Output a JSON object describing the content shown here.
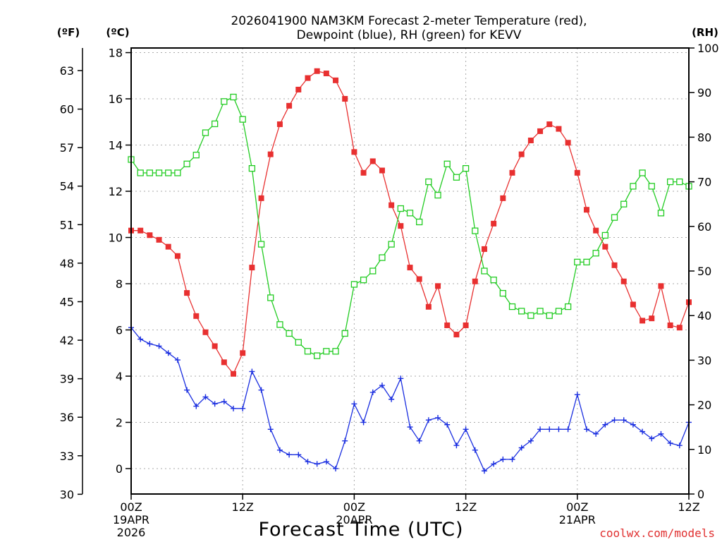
{
  "chart_data": {
    "type": "line",
    "title_line1": "2026041900 NAM3KM Forecast 2-meter Temperature (red),",
    "title_line2": "Dewpoint (blue), RH (green) for KEVV",
    "xlabel": "Forecast Time (UTC)",
    "watermark": "coolwx.com/models",
    "left_outer_unit": "(ºF)",
    "left_inner_unit": "(ºC)",
    "right_unit": "(RH)",
    "xlim": [
      0,
      60
    ],
    "ylim_c": [
      -1.1,
      18.2
    ],
    "ylim_rh": [
      0,
      100
    ],
    "f_ticks": [
      "30",
      "33",
      "36",
      "39",
      "42",
      "45",
      "48",
      "51",
      "54",
      "57",
      "60",
      "63"
    ],
    "c_ticks": [
      "0",
      "2",
      "4",
      "6",
      "8",
      "10",
      "12",
      "14",
      "16",
      "18"
    ],
    "rh_ticks": [
      "0",
      "10",
      "20",
      "30",
      "40",
      "50",
      "60",
      "70",
      "80",
      "90",
      "100"
    ],
    "x_ticks": [
      {
        "hour": 0,
        "label": "00Z",
        "date": "19APR",
        "year": "2026"
      },
      {
        "hour": 12,
        "label": "12Z",
        "date": "",
        "year": ""
      },
      {
        "hour": 24,
        "label": "00Z",
        "date": "20APR",
        "year": ""
      },
      {
        "hour": 36,
        "label": "12Z",
        "date": "",
        "year": ""
      },
      {
        "hour": 48,
        "label": "00Z",
        "date": "21APR",
        "year": ""
      },
      {
        "hour": 60,
        "label": "12Z",
        "date": "",
        "year": ""
      }
    ],
    "series": [
      {
        "name": "2-meter Temperature (°C)",
        "color": "#e83030",
        "marker": "filled-square",
        "axis": "c",
        "values": [
          10.3,
          10.3,
          10.1,
          9.9,
          9.6,
          9.2,
          7.6,
          6.6,
          5.9,
          5.3,
          4.6,
          4.1,
          5.0,
          8.7,
          11.7,
          13.6,
          14.9,
          15.7,
          16.4,
          16.9,
          17.2,
          17.1,
          16.8,
          16.0,
          13.7,
          12.8,
          13.3,
          12.9,
          11.4,
          10.5,
          8.7,
          8.2,
          7.0,
          7.9,
          6.2,
          5.8,
          6.2,
          8.1,
          9.5,
          10.6,
          11.7,
          12.8,
          13.6,
          14.2,
          14.6,
          14.9,
          14.7,
          14.1,
          12.8,
          11.2,
          10.3,
          9.6,
          8.8,
          8.1,
          7.1,
          6.4,
          6.5,
          7.9,
          6.2,
          6.1,
          7.2
        ]
      },
      {
        "name": "Dewpoint (°C)",
        "color": "#1a2ee0",
        "marker": "plus",
        "axis": "c",
        "values": [
          6.1,
          5.6,
          5.4,
          5.3,
          5.0,
          4.7,
          3.4,
          2.7,
          3.1,
          2.8,
          2.9,
          2.6,
          2.6,
          4.2,
          3.4,
          1.7,
          0.8,
          0.6,
          0.6,
          0.3,
          0.2,
          0.3,
          0.0,
          1.2,
          2.8,
          2.0,
          3.3,
          3.6,
          3.0,
          3.9,
          1.8,
          1.2,
          2.1,
          2.2,
          1.9,
          1.0,
          1.7,
          0.8,
          -0.1,
          0.2,
          0.4,
          0.4,
          0.9,
          1.2,
          1.7,
          1.7,
          1.7,
          1.7,
          3.2,
          1.7,
          1.5,
          1.9,
          2.1,
          2.1,
          1.9,
          1.6,
          1.3,
          1.5,
          1.1,
          1.0,
          2.0
        ]
      },
      {
        "name": "RH (%)",
        "color": "#22cc22",
        "marker": "open-square",
        "axis": "rh",
        "values": [
          75,
          72,
          72,
          72,
          72,
          72,
          74,
          76,
          81,
          83,
          88,
          89,
          84,
          73,
          56,
          44,
          38,
          36,
          34,
          32,
          31,
          32,
          32,
          36,
          47,
          48,
          50,
          53,
          56,
          64,
          63,
          61,
          70,
          67,
          74,
          71,
          73,
          59,
          50,
          48,
          45,
          42,
          41,
          40,
          41,
          40,
          41,
          42,
          52,
          52,
          54,
          58,
          62,
          65,
          69,
          72,
          69,
          63,
          70,
          70,
          69
        ]
      }
    ]
  }
}
